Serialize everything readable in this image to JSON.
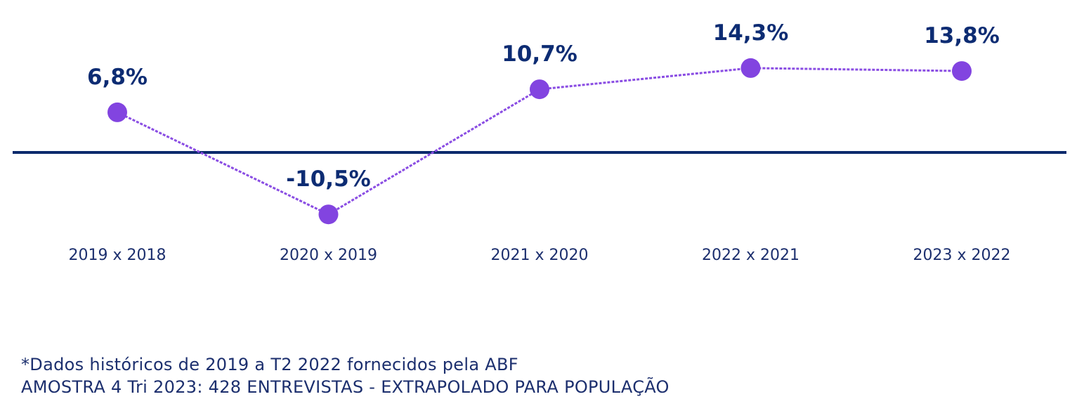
{
  "colors": {
    "axis": "#0a2a6c",
    "line": "#8a4de3",
    "marker": "#8244e0",
    "value_label": "#0d2c73",
    "category_label": "#1c2f6e"
  },
  "chart_data": {
    "type": "line",
    "categories": [
      "2019 x 2018",
      "2020 x 2019",
      "2021 x 2020",
      "2022 x 2021",
      "2023 x 2022"
    ],
    "values": [
      6.8,
      -10.5,
      10.7,
      14.3,
      13.8
    ],
    "data_labels": [
      "6,8%",
      "-10,5%",
      "10,7%",
      "14,3%",
      "13,8%"
    ],
    "ylim": [
      -12,
      16
    ],
    "baseline": 0,
    "line_style": "dashed",
    "grid": false,
    "legend": "none"
  },
  "footnotes": {
    "line1": "*Dados históricos de 2019 a T2 2022 fornecidos pela ABF",
    "line2": "AMOSTRA 4 Tri 2023: 428 ENTREVISTAS - EXTRAPOLADO PARA POPULAÇÃO"
  }
}
